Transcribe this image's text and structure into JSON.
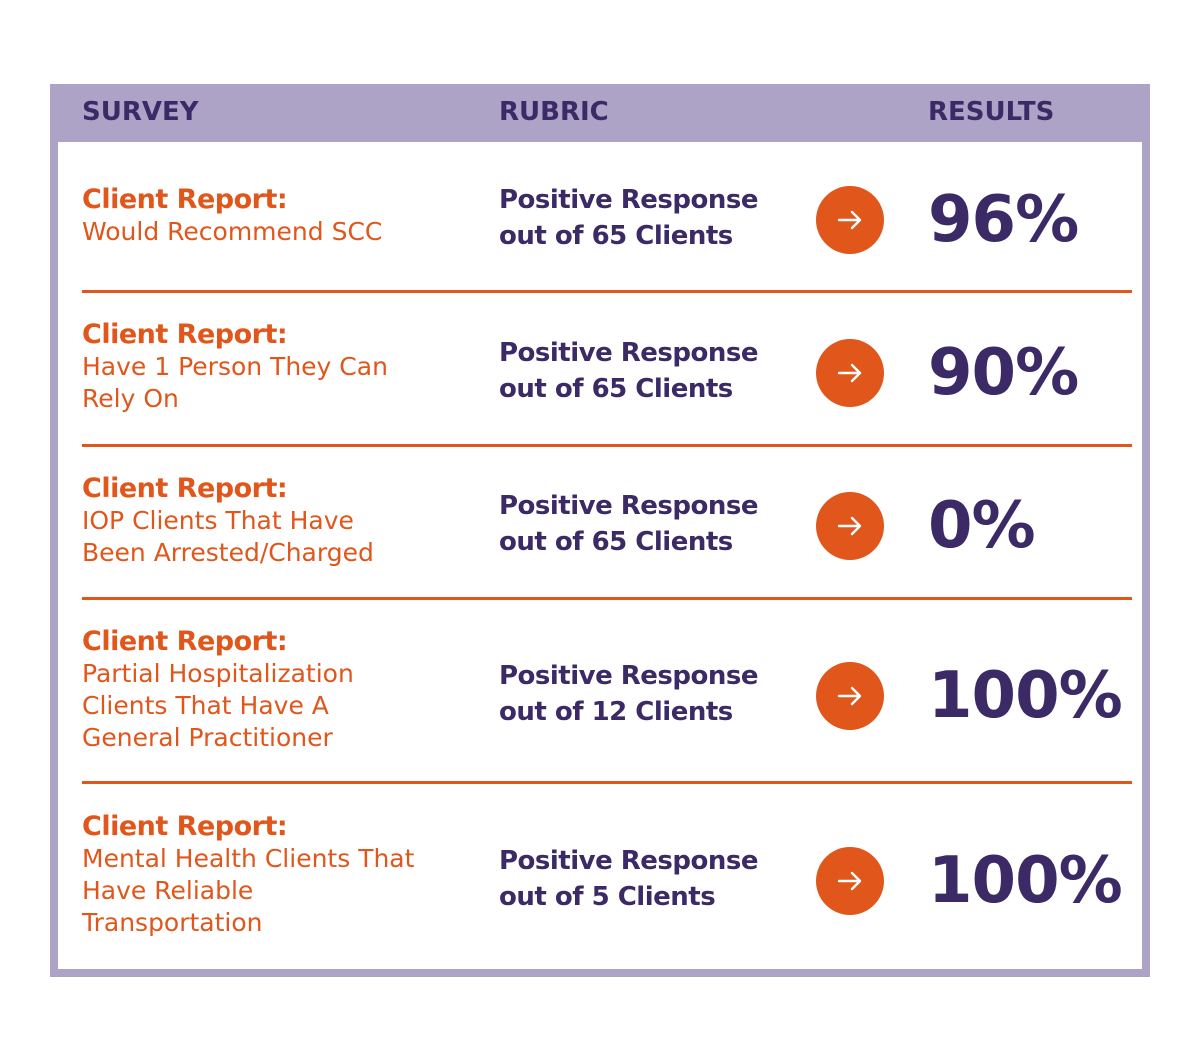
{
  "header": {
    "survey": "SURVEY",
    "rubric": "RUBRIC",
    "results": "RESULTS"
  },
  "colors": {
    "frame": "#ada3c6",
    "accent": "#e0561b",
    "text_dark": "#3b2a66"
  },
  "rows": [
    {
      "lead": "Client Report:",
      "desc": "Would Recommend SCC",
      "rubric": "Positive Response\nout of 65 Clients",
      "icon": "arrow-right-icon",
      "result": "96%"
    },
    {
      "lead": "Client Report:",
      "desc": "Have 1 Person They Can\nRely On",
      "rubric": "Positive Response\nout of 65 Clients",
      "icon": "arrow-right-icon",
      "result": "90%"
    },
    {
      "lead": "Client Report:",
      "desc": "IOP Clients That Have\nBeen Arrested/Charged",
      "rubric": "Positive Response\nout of 65 Clients",
      "icon": "arrow-right-icon",
      "result": "0%"
    },
    {
      "lead": "Client Report:",
      "desc": "Partial Hospitalization\nClients That Have A\nGeneral Practitioner",
      "rubric": "Positive Response\nout of 12 Clients",
      "icon": "arrow-right-icon",
      "result": "100%"
    },
    {
      "lead": "Client Report:",
      "desc": "Mental Health Clients That\nHave Reliable\nTransportation",
      "rubric": "Positive Response\nout of 5 Clients",
      "icon": "arrow-right-icon",
      "result": "100%"
    }
  ]
}
